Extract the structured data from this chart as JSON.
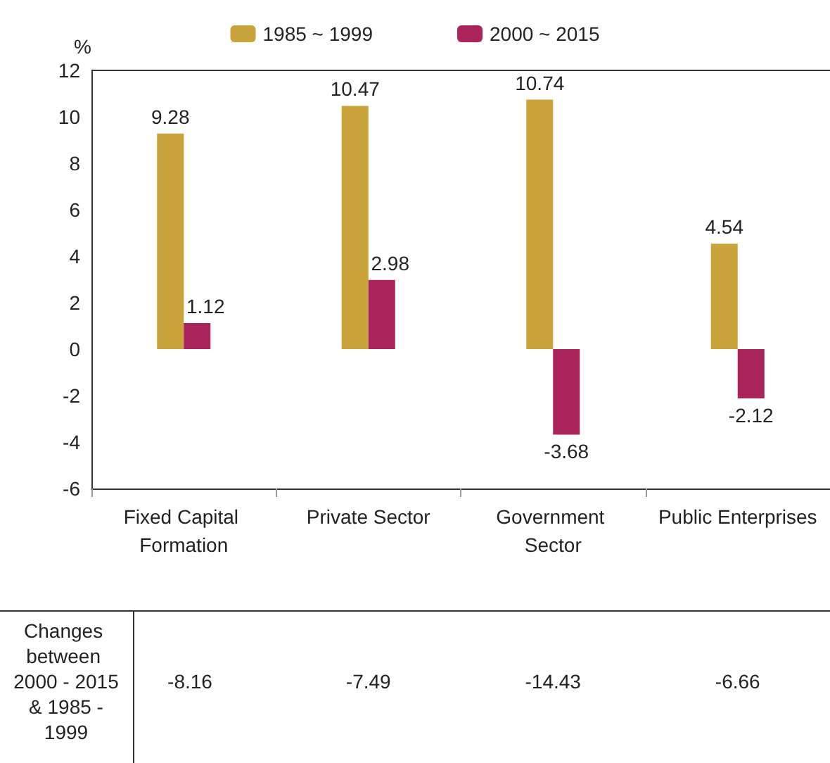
{
  "chart_data": {
    "type": "bar",
    "ylabel": "%",
    "categories": [
      "Fixed Capital Formation",
      "Private Sector",
      "Government Sector",
      "Public Enterprises"
    ],
    "series": [
      {
        "name": "1985 ~ 1999",
        "color": "#c9a43a",
        "values": [
          9.28,
          10.47,
          10.74,
          4.54
        ]
      },
      {
        "name": "2000 ~ 2015",
        "color": "#a8245a",
        "values": [
          1.12,
          2.98,
          -3.68,
          -2.12
        ]
      }
    ],
    "ylim": [
      -6,
      12
    ],
    "yticks": [
      -6,
      -4,
      -2,
      0,
      2,
      4,
      6,
      8,
      10,
      12
    ],
    "grid": false,
    "legend": "top",
    "data_labels": true,
    "annotations": [
      "Changes between 2000 - 2015 & 1985 - 1999",
      "-8.16",
      "-7.49",
      "-14.43",
      "-6.66"
    ]
  }
}
